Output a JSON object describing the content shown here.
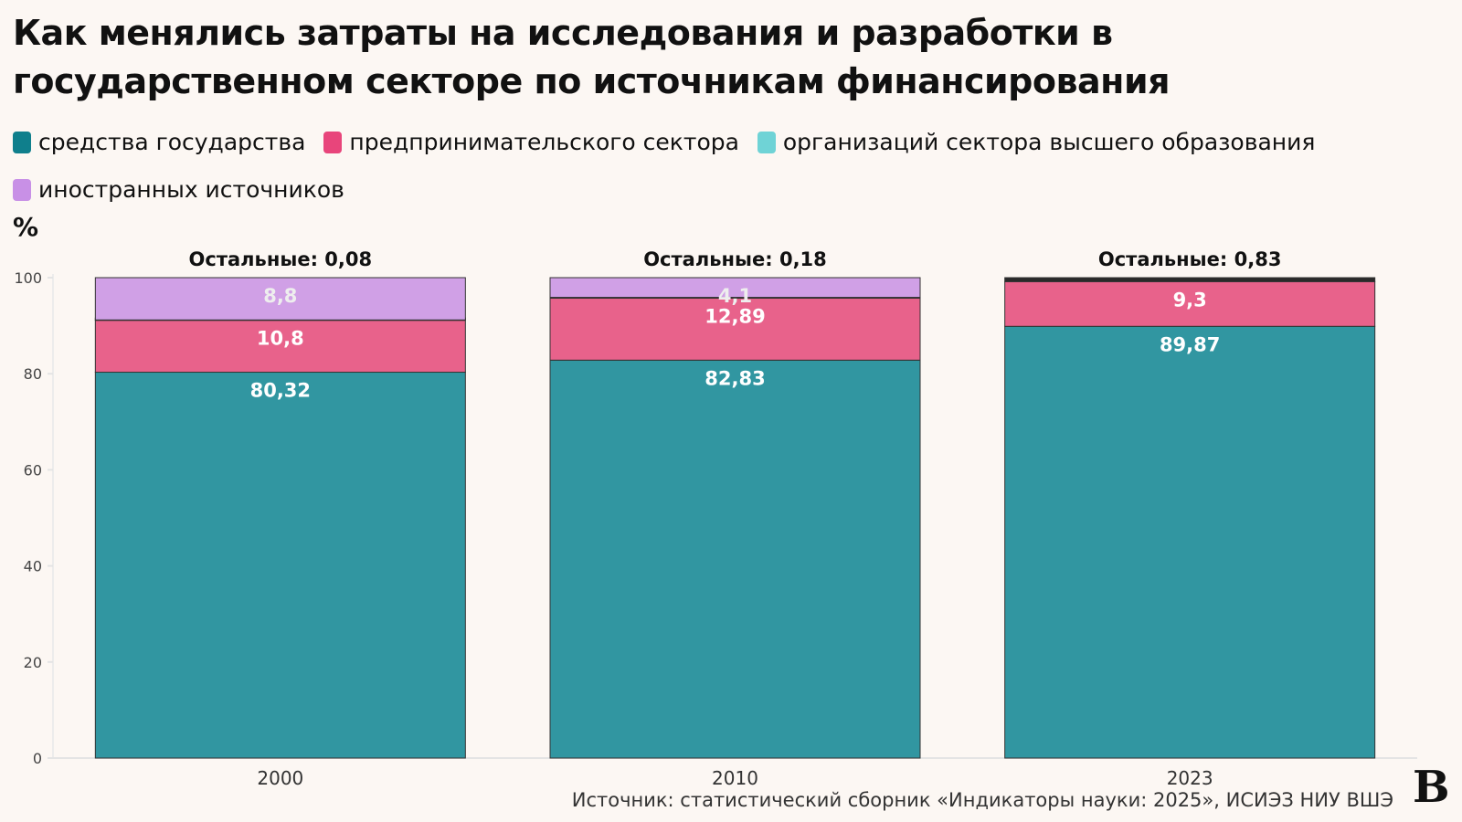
{
  "title": "Как менялись затраты на исследования и разработки в государственном секторе по источникам финансирования",
  "legend": [
    {
      "label": "средства государства",
      "color": "#0f7f8c"
    },
    {
      "label": "предпринимательского сектора",
      "color": "#e8457b"
    },
    {
      "label": "организаций сектора высшего образования",
      "color": "#6fd3d6"
    },
    {
      "label": "иностранных источников",
      "color": "#c890e6"
    }
  ],
  "unit": "%",
  "source": "Источник: статистический сборник «Индикаторы науки: 2025», ИСИЭЗ НИУ ВШЭ",
  "logo": "В",
  "chart_data": {
    "type": "bar",
    "stacked": true,
    "categories": [
      "2000",
      "2010",
      "2023"
    ],
    "ylim": [
      0,
      100
    ],
    "yticks": [
      0,
      20,
      40,
      60,
      80,
      100
    ],
    "ylabel": "%",
    "grid": false,
    "series": [
      {
        "name": "средства государства",
        "color": "#3196a1",
        "values": [
          80.32,
          82.83,
          89.87
        ],
        "labels": [
          "80,32",
          "82,83",
          "89,87"
        ],
        "label_color": "#ffffff"
      },
      {
        "name": "предпринимательского сектора",
        "color": "#e8628b",
        "values": [
          10.8,
          12.89,
          9.3
        ],
        "labels": [
          "10,8",
          "12,89",
          "9,3"
        ],
        "label_color": "#ffffff"
      },
      {
        "name": "Остальные",
        "color": "#2a2a2a",
        "values": [
          0.08,
          0.18,
          0.83
        ],
        "labels": [
          "",
          "",
          ""
        ],
        "label_color": "#ffffff"
      },
      {
        "name": "иностранных источников",
        "color": "#d0a0e6",
        "values": [
          8.8,
          4.1,
          0
        ],
        "labels": [
          "8,8",
          "4,1",
          ""
        ],
        "label_color": "#eeeeee"
      }
    ],
    "annotations": [
      "Остальные: 0,08",
      "Остальные: 0,18",
      "Остальные: 0,83"
    ]
  }
}
